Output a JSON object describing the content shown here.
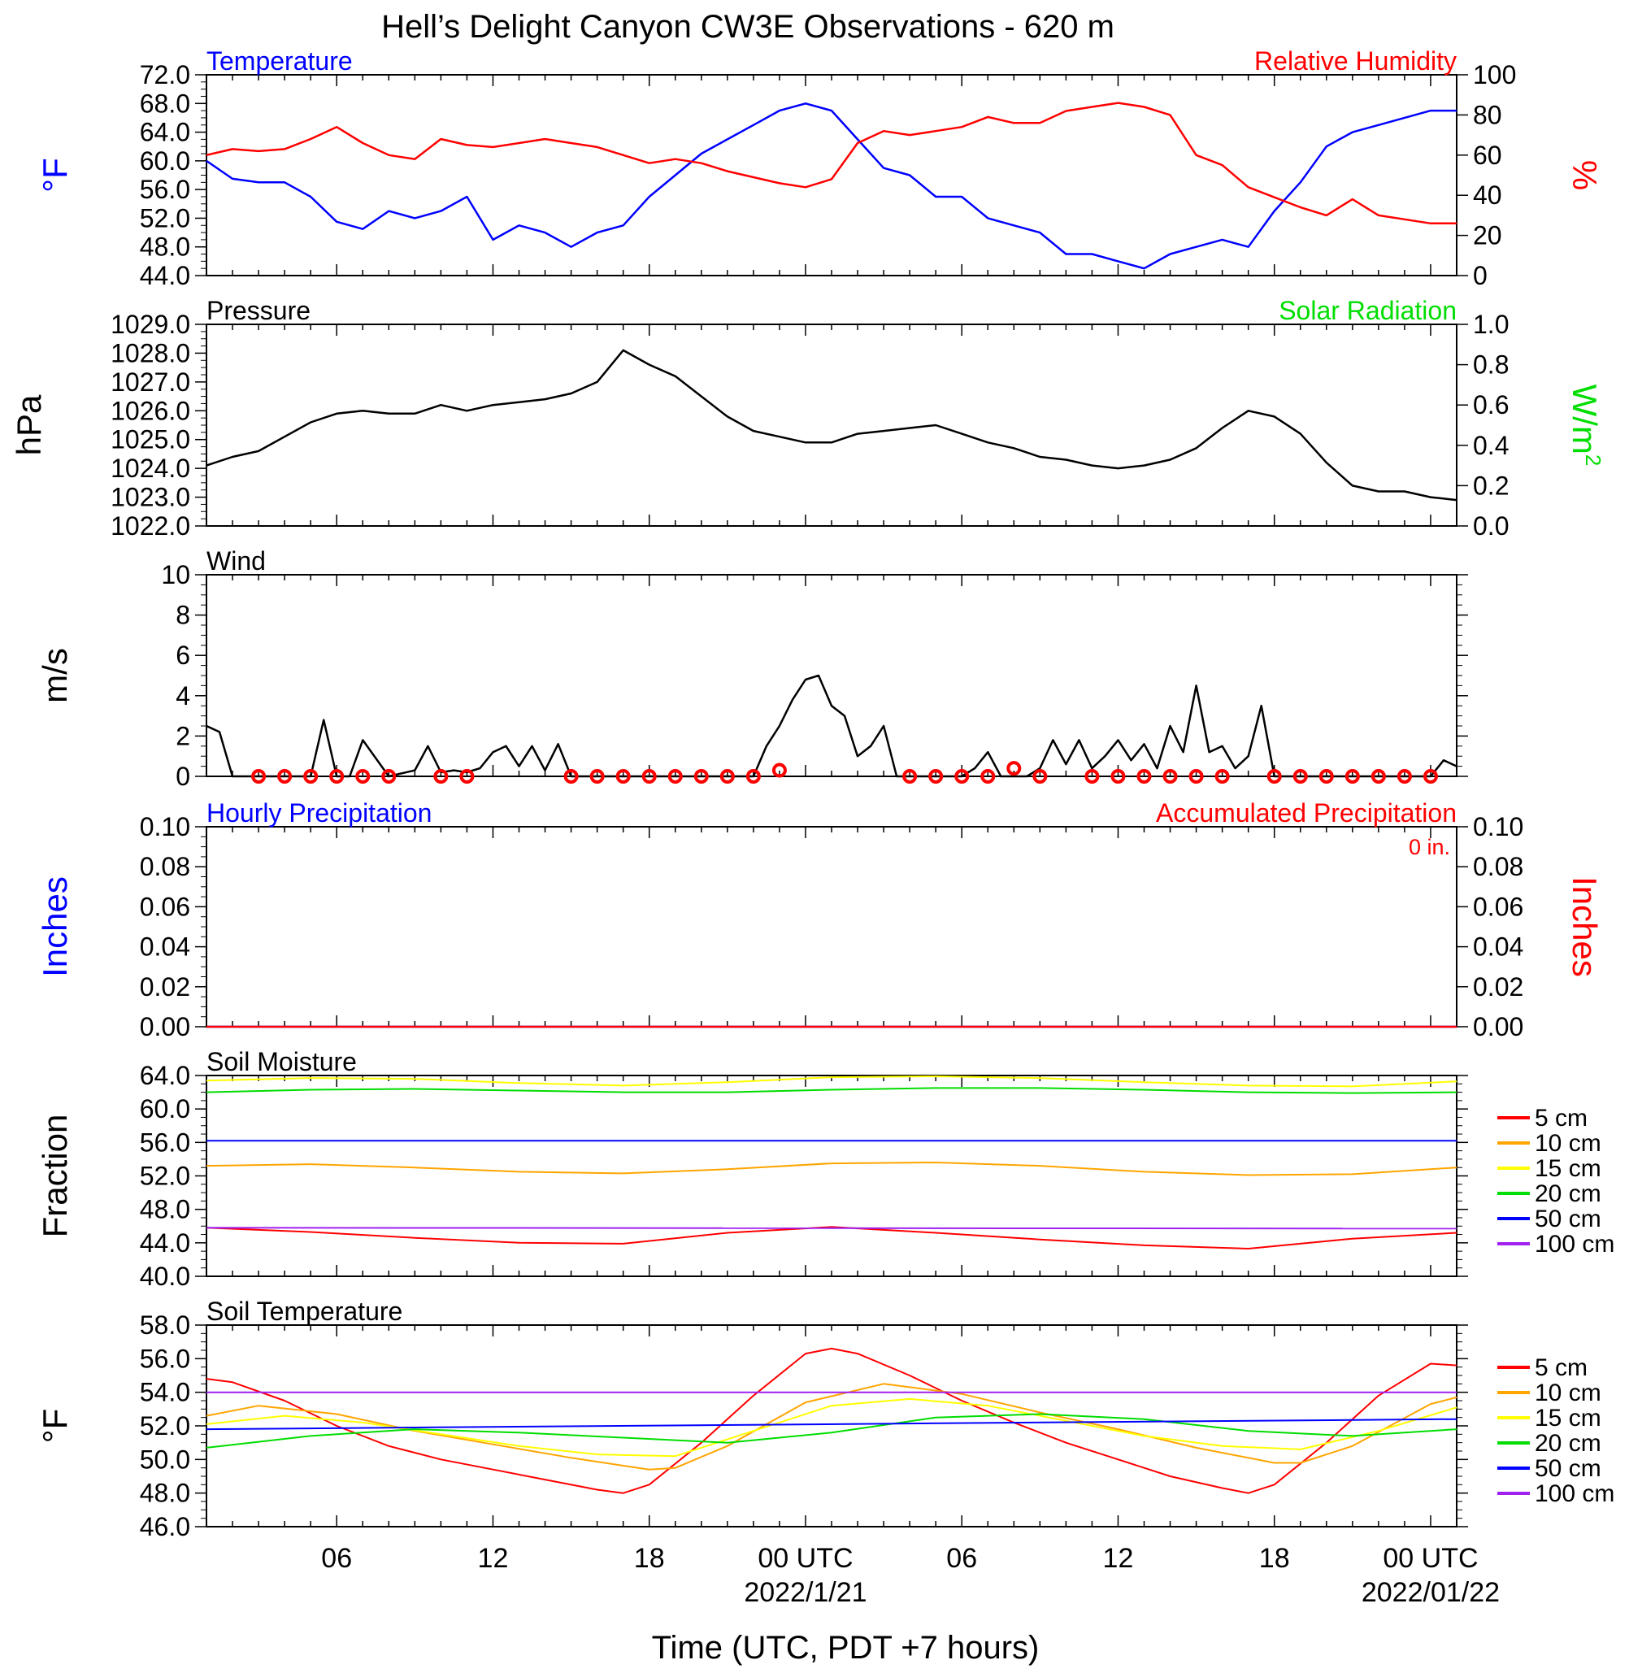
{
  "title": "Hell’s Delight Canyon CW3E Observations - 620 m",
  "xlabel": "Time (UTC, PDT +7 hours)",
  "x_ticks": [
    "06",
    "12",
    "18",
    "00 UTC",
    "06",
    "12",
    "18",
    "00 UTC"
  ],
  "x_tick_hours": [
    6,
    12,
    18,
    24,
    30,
    36,
    42,
    48
  ],
  "x_dates": [
    {
      "hour": 24,
      "label": "2022/1/21"
    },
    {
      "hour": 48,
      "label": "2022/01/22"
    }
  ],
  "x_range_hours": [
    1,
    49
  ],
  "colors": {
    "blue": "#0000ff",
    "red": "#ff0000",
    "green": "#00dd00",
    "black": "#000000",
    "orange": "#ffa500",
    "yellow": "#ffff00",
    "purple": "#a020f0"
  },
  "chart_data": [
    {
      "type": "line",
      "title_left": "Temperature",
      "title_right": "Relative Humidity",
      "ylabel_left": "°F",
      "ylabel_right": "%",
      "ylim_left": [
        44,
        72
      ],
      "yticks_left": [
        "72.0",
        "68.0",
        "64.0",
        "60.0",
        "56.0",
        "52.0",
        "48.0",
        "44.0"
      ],
      "ylim_right": [
        0,
        100
      ],
      "yticks_right": [
        "100",
        "80",
        "60",
        "40",
        "20",
        "0"
      ],
      "series": [
        {
          "name": "Temperature",
          "axis": "left",
          "color": "#0000ff",
          "x": [
            1,
            2,
            3,
            4,
            5,
            6,
            7,
            8,
            9,
            10,
            11,
            12,
            13,
            14,
            15,
            16,
            17,
            18,
            19,
            20,
            21,
            22,
            23,
            24,
            25,
            26,
            27,
            28,
            29,
            30,
            31,
            32,
            33,
            34,
            35,
            36,
            37,
            38,
            39,
            40,
            41,
            42,
            43,
            44,
            45,
            46,
            47,
            48,
            49
          ],
          "y": [
            60,
            57.5,
            57,
            57,
            55,
            51.5,
            50.5,
            53,
            52,
            53,
            55,
            49,
            51,
            50,
            48,
            50,
            51,
            55,
            58,
            61,
            63,
            65,
            67,
            68,
            67,
            63,
            59,
            58,
            55,
            55,
            52,
            51,
            50,
            47,
            47,
            46,
            45,
            47,
            48,
            49,
            48,
            53,
            57,
            62,
            64,
            65,
            66,
            67,
            67
          ]
        },
        {
          "name": "Relative Humidity",
          "axis": "right",
          "color": "#ff0000",
          "x": [
            1,
            2,
            3,
            4,
            5,
            6,
            7,
            8,
            9,
            10,
            11,
            12,
            13,
            14,
            15,
            16,
            17,
            18,
            19,
            20,
            21,
            22,
            23,
            24,
            25,
            26,
            27,
            28,
            29,
            30,
            31,
            32,
            33,
            34,
            35,
            36,
            37,
            38,
            39,
            40,
            41,
            42,
            43,
            44,
            45,
            46,
            47,
            48,
            49
          ],
          "y": [
            60,
            63,
            62,
            63,
            68,
            74,
            66,
            60,
            58,
            68,
            65,
            64,
            66,
            68,
            66,
            64,
            60,
            56,
            58,
            56,
            52,
            49,
            46,
            44,
            48,
            66,
            72,
            70,
            72,
            74,
            79,
            76,
            76,
            82,
            84,
            86,
            84,
            80,
            60,
            55,
            44,
            39,
            34,
            30,
            38,
            30,
            28,
            26,
            26
          ]
        }
      ]
    },
    {
      "type": "line",
      "title_left": "Pressure",
      "title_right": "Solar Radiation",
      "ylabel_left": "hPa",
      "ylabel_right": "W/m2",
      "ylim_left": [
        1022,
        1029
      ],
      "yticks_left": [
        "1029.0",
        "1028.0",
        "1027.0",
        "1026.0",
        "1025.0",
        "1024.0",
        "1023.0",
        "1022.0"
      ],
      "ylim_right": [
        0,
        1
      ],
      "yticks_right": [
        "1.0",
        "0.8",
        "0.6",
        "0.4",
        "0.2",
        "0.0"
      ],
      "series": [
        {
          "name": "Pressure",
          "axis": "left",
          "color": "#000000",
          "x": [
            1,
            2,
            3,
            4,
            5,
            6,
            7,
            8,
            9,
            10,
            11,
            12,
            13,
            14,
            15,
            16,
            17,
            18,
            19,
            20,
            21,
            22,
            23,
            24,
            25,
            26,
            27,
            28,
            29,
            30,
            31,
            32,
            33,
            34,
            35,
            36,
            37,
            38,
            39,
            40,
            41,
            42,
            43,
            44,
            45,
            46,
            47,
            48,
            49
          ],
          "y": [
            1024.1,
            1024.4,
            1024.6,
            1025.1,
            1025.6,
            1025.9,
            1026.0,
            1025.9,
            1025.9,
            1026.2,
            1026.0,
            1026.2,
            1026.3,
            1026.4,
            1026.6,
            1027.0,
            1028.1,
            1027.6,
            1027.2,
            1026.5,
            1025.8,
            1025.3,
            1025.1,
            1024.9,
            1024.9,
            1025.2,
            1025.3,
            1025.4,
            1025.5,
            1025.2,
            1024.9,
            1024.7,
            1024.4,
            1024.3,
            1024.1,
            1024.0,
            1024.1,
            1024.3,
            1024.7,
            1025.4,
            1026.0,
            1025.8,
            1025.2,
            1024.2,
            1023.4,
            1023.2,
            1023.2,
            1023.0,
            1022.9
          ]
        }
      ]
    },
    {
      "type": "line",
      "title_left": "Wind",
      "ylabel_left": "m/s",
      "ylim_left": [
        0,
        10
      ],
      "yticks_left": [
        "10",
        "8",
        "6",
        "4",
        "2",
        "0"
      ],
      "series": [
        {
          "name": "Wind speed",
          "axis": "left",
          "color": "#000000",
          "x": [
            1,
            1.5,
            2,
            2.5,
            3,
            4,
            5,
            5.5,
            6,
            6.5,
            7,
            8,
            9,
            9.5,
            10,
            10.5,
            11,
            11.5,
            12,
            12.5,
            13,
            13.5,
            14,
            14.5,
            15,
            16,
            17,
            18,
            19,
            20,
            21,
            22,
            22.5,
            23,
            23.5,
            24,
            24.5,
            25,
            25.5,
            26,
            26.5,
            27,
            27.5,
            28,
            29,
            30,
            30.5,
            31,
            31.5,
            32,
            32.5,
            33,
            33.5,
            34,
            34.5,
            35,
            35.5,
            36,
            36.5,
            37,
            37.5,
            38,
            38.5,
            39,
            39.5,
            40,
            40.5,
            41,
            41.5,
            42,
            42.5,
            43,
            44,
            45,
            46,
            47,
            48,
            48.5,
            49
          ],
          "y": [
            2.5,
            2.2,
            0,
            0,
            0,
            0,
            0,
            2.8,
            0,
            0,
            1.8,
            0,
            0.3,
            1.5,
            0.2,
            0.3,
            0.2,
            0.4,
            1.2,
            1.5,
            0.5,
            1.5,
            0.3,
            1.6,
            0,
            0,
            0,
            0,
            0,
            0,
            0,
            0,
            1.5,
            2.5,
            3.8,
            4.8,
            5.0,
            3.5,
            3.0,
            1.0,
            1.5,
            2.5,
            0,
            0,
            0,
            0,
            0.4,
            1.2,
            0,
            0,
            0,
            0.4,
            1.8,
            0.6,
            1.8,
            0.4,
            1.0,
            1.8,
            0.8,
            1.6,
            0.4,
            2.5,
            1.2,
            4.5,
            1.2,
            1.5,
            0.4,
            1.0,
            3.5,
            0,
            0,
            0,
            0,
            0,
            0,
            0,
            0,
            0.8,
            0.5
          ]
        },
        {
          "name": "Calm",
          "axis": "left",
          "color": "#ff0000",
          "x": [
            3,
            4,
            5,
            6,
            7,
            8,
            10,
            11,
            15,
            16,
            17,
            18,
            19,
            20,
            21,
            22,
            23,
            28,
            29,
            30,
            31,
            32,
            33,
            35,
            36,
            37,
            38,
            39,
            40,
            42,
            43,
            44,
            45,
            46,
            47,
            48
          ],
          "y": [
            0,
            0,
            0,
            0,
            0,
            0,
            0,
            0,
            0,
            0,
            0,
            0,
            0,
            0,
            0,
            0,
            0.3,
            0,
            0,
            0,
            0,
            0.4,
            0,
            0,
            0,
            0,
            0,
            0,
            0,
            0,
            0,
            0,
            0,
            0,
            0,
            0
          ]
        }
      ]
    },
    {
      "type": "line",
      "title_left": "Hourly Precipitation",
      "title_right": "Accumulated Precipitation",
      "annotation": "0 in.",
      "ylabel_left": "Inches",
      "ylabel_right": "Inches",
      "ylim_left": [
        0,
        0.1
      ],
      "yticks_left": [
        "0.10",
        "0.08",
        "0.06",
        "0.04",
        "0.02",
        "0.00"
      ],
      "ylim_right": [
        0,
        0.1
      ],
      "yticks_right": [
        "0.10",
        "0.08",
        "0.06",
        "0.04",
        "0.02",
        "0.00"
      ],
      "series": [
        {
          "name": "Hourly Precipitation",
          "axis": "left",
          "color": "#0000ff",
          "x": [
            1,
            49
          ],
          "y": [
            0,
            0
          ]
        },
        {
          "name": "Accumulated Precipitation",
          "axis": "right",
          "color": "#ff0000",
          "x": [
            1,
            49
          ],
          "y": [
            0,
            0
          ]
        }
      ]
    },
    {
      "type": "line",
      "title_left": "Soil Moisture",
      "ylabel_left": "Fraction",
      "ylim_left": [
        40,
        64
      ],
      "yticks_left": [
        "64.0",
        "60.0",
        "56.0",
        "52.0",
        "48.0",
        "44.0",
        "40.0"
      ],
      "legend": [
        "5 cm",
        "10 cm",
        "15 cm",
        "20 cm",
        "50 cm",
        "100 cm"
      ],
      "series": [
        {
          "name": "5 cm",
          "color": "#ff0000",
          "x": [
            1,
            5,
            9,
            13,
            17,
            21,
            25,
            29,
            33,
            37,
            41,
            45,
            49
          ],
          "y": [
            45.8,
            45.3,
            44.6,
            44.0,
            43.9,
            45.2,
            45.9,
            45.2,
            44.4,
            43.7,
            43.3,
            44.5,
            45.2
          ]
        },
        {
          "name": "10 cm",
          "color": "#ffa500",
          "x": [
            1,
            5,
            9,
            13,
            17,
            21,
            25,
            29,
            33,
            37,
            41,
            45,
            49
          ],
          "y": [
            53.2,
            53.4,
            53.0,
            52.5,
            52.3,
            52.8,
            53.5,
            53.6,
            53.2,
            52.5,
            52.1,
            52.2,
            53.0
          ]
        },
        {
          "name": "15 cm",
          "color": "#ffff00",
          "x": [
            1,
            5,
            9,
            13,
            17,
            21,
            25,
            29,
            33,
            37,
            41,
            45,
            49
          ],
          "y": [
            63.4,
            63.7,
            63.6,
            63.1,
            62.8,
            63.2,
            63.8,
            63.9,
            63.7,
            63.2,
            62.8,
            62.7,
            63.3
          ]
        },
        {
          "name": "20 cm",
          "color": "#00dd00",
          "x": [
            1,
            5,
            9,
            13,
            17,
            21,
            25,
            29,
            33,
            37,
            41,
            45,
            49
          ],
          "y": [
            62.0,
            62.3,
            62.4,
            62.2,
            62.0,
            62.0,
            62.3,
            62.5,
            62.5,
            62.3,
            62.0,
            61.9,
            62.0
          ]
        },
        {
          "name": "50 cm",
          "color": "#0000ff",
          "x": [
            1,
            49
          ],
          "y": [
            56.2,
            56.2
          ]
        },
        {
          "name": "100 cm",
          "color": "#a020f0",
          "x": [
            1,
            49
          ],
          "y": [
            45.8,
            45.7
          ]
        }
      ]
    },
    {
      "type": "line",
      "title_left": "Soil Temperature",
      "ylabel_left": "°F",
      "ylim_left": [
        46,
        58
      ],
      "yticks_left": [
        "58.0",
        "56.0",
        "54.0",
        "52.0",
        "50.0",
        "48.0",
        "46.0"
      ],
      "legend": [
        "5 cm",
        "10 cm",
        "15 cm",
        "20 cm",
        "50 cm",
        "100 cm"
      ],
      "series": [
        {
          "name": "5 cm",
          "color": "#ff0000",
          "x": [
            1,
            2,
            4,
            6,
            8,
            10,
            12,
            14,
            16,
            17,
            18,
            20,
            22,
            24,
            25,
            26,
            28,
            30,
            32,
            34,
            36,
            38,
            40,
            41,
            42,
            44,
            46,
            48,
            49
          ],
          "y": [
            54.8,
            54.6,
            53.5,
            52.0,
            50.8,
            50.0,
            49.4,
            48.8,
            48.2,
            48.0,
            48.5,
            51.0,
            53.8,
            56.3,
            56.6,
            56.3,
            55.0,
            53.5,
            52.2,
            51.0,
            50.0,
            49.0,
            48.3,
            48.0,
            48.5,
            51.0,
            53.8,
            55.7,
            55.6
          ]
        },
        {
          "name": "10 cm",
          "color": "#ffa500",
          "x": [
            1,
            3,
            6,
            9,
            12,
            15,
            18,
            19,
            21,
            24,
            27,
            30,
            33,
            36,
            39,
            42,
            43,
            45,
            48,
            49
          ],
          "y": [
            52.6,
            53.2,
            52.7,
            51.7,
            50.9,
            50.1,
            49.4,
            49.5,
            50.8,
            53.4,
            54.5,
            53.9,
            52.8,
            51.8,
            50.7,
            49.8,
            49.8,
            50.8,
            53.3,
            53.7
          ]
        },
        {
          "name": "15 cm",
          "color": "#ffff00",
          "x": [
            1,
            4,
            7,
            10,
            13,
            16,
            19,
            22,
            25,
            28,
            31,
            34,
            37,
            40,
            43,
            46,
            49
          ],
          "y": [
            52.1,
            52.6,
            52.2,
            51.5,
            50.8,
            50.3,
            50.2,
            51.7,
            53.2,
            53.6,
            53.2,
            52.3,
            51.4,
            50.8,
            50.6,
            51.7,
            53.1
          ]
        },
        {
          "name": "20 cm",
          "color": "#00dd00",
          "x": [
            1,
            5,
            9,
            13,
            17,
            21,
            25,
            29,
            33,
            37,
            41,
            45,
            49
          ],
          "y": [
            50.7,
            51.4,
            51.8,
            51.6,
            51.3,
            51.0,
            51.6,
            52.5,
            52.7,
            52.4,
            51.7,
            51.4,
            51.8
          ]
        },
        {
          "name": "50 cm",
          "color": "#0000ff",
          "x": [
            1,
            49
          ],
          "y": [
            51.8,
            52.4
          ]
        },
        {
          "name": "100 cm",
          "color": "#a020f0",
          "x": [
            1,
            49
          ],
          "y": [
            54.0,
            54.0
          ]
        }
      ]
    }
  ]
}
